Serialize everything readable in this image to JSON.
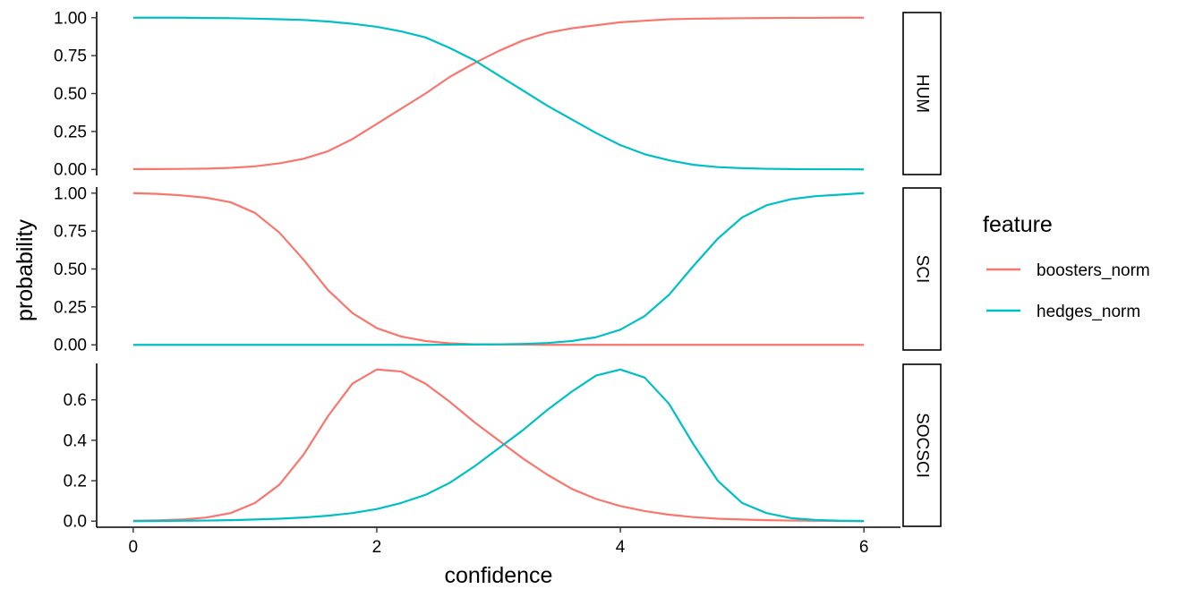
{
  "chart_data": {
    "type": "line",
    "xlabel": "confidence",
    "ylabel": "probability",
    "xlim": [
      -0.3,
      6.3
    ],
    "x_ticks": [
      0,
      2,
      4,
      6
    ],
    "x_tick_labels": [
      "0",
      "2",
      "4",
      "6"
    ],
    "grid": false,
    "legend": {
      "title": "feature",
      "placement": "right",
      "entries": [
        {
          "label": "boosters_norm",
          "color": "#F8766D"
        },
        {
          "label": "hedges_norm",
          "color": "#00BFC4"
        }
      ]
    },
    "x": [
      0,
      0.2,
      0.4,
      0.6,
      0.8,
      1.0,
      1.2,
      1.4,
      1.6,
      1.8,
      2.0,
      2.2,
      2.4,
      2.6,
      2.8,
      3.0,
      3.2,
      3.4,
      3.6,
      3.8,
      4.0,
      4.2,
      4.4,
      4.6,
      4.8,
      5.0,
      5.2,
      5.4,
      5.6,
      5.8,
      6.0
    ],
    "panels": [
      {
        "strip": "HUM",
        "ylim": [
          -0.04,
          1.04
        ],
        "y_ticks": [
          0,
          0.25,
          0.5,
          0.75,
          1.0
        ],
        "y_tick_labels": [
          "0.00",
          "0.25",
          "0.50",
          "0.75",
          "1.00"
        ],
        "series": [
          {
            "name": "boosters_norm",
            "color": "#F8766D",
            "values": [
              0.002,
              0.002,
              0.003,
              0.005,
              0.01,
              0.02,
              0.04,
              0.07,
              0.12,
              0.2,
              0.3,
              0.4,
              0.5,
              0.61,
              0.7,
              0.78,
              0.85,
              0.9,
              0.93,
              0.95,
              0.97,
              0.98,
              0.99,
              0.993,
              0.995,
              0.997,
              0.998,
              0.999,
              0.999,
              1.0,
              1.0
            ]
          },
          {
            "name": "hedges_norm",
            "color": "#00BFC4",
            "values": [
              1.0,
              1.0,
              1.0,
              0.998,
              0.997,
              0.994,
              0.99,
              0.985,
              0.975,
              0.96,
              0.94,
              0.91,
              0.87,
              0.8,
              0.72,
              0.62,
              0.52,
              0.42,
              0.33,
              0.24,
              0.16,
              0.1,
              0.06,
              0.03,
              0.015,
              0.008,
              0.004,
              0.002,
              0.001,
              0.001,
              0.0
            ]
          }
        ]
      },
      {
        "strip": "SCI",
        "ylim": [
          -0.04,
          1.04
        ],
        "y_ticks": [
          0,
          0.25,
          0.5,
          0.75,
          1.0
        ],
        "y_tick_labels": [
          "0.00",
          "0.25",
          "0.50",
          "0.75",
          "1.00"
        ],
        "series": [
          {
            "name": "boosters_norm",
            "color": "#F8766D",
            "values": [
              1.0,
              0.995,
              0.985,
              0.97,
              0.94,
              0.87,
              0.74,
              0.56,
              0.36,
              0.21,
              0.11,
              0.055,
              0.025,
              0.01,
              0.004,
              0.002,
              0.001,
              0.0,
              0.0,
              0.0,
              0.0,
              0.0,
              0.0,
              0.0,
              0.0,
              0.0,
              0.0,
              0.0,
              0.0,
              0.0,
              0.0
            ]
          },
          {
            "name": "hedges_norm",
            "color": "#00BFC4",
            "values": [
              0.0,
              0.0,
              0.0,
              0.0,
              0.0,
              0.0,
              0.0,
              0.0,
              0.0,
              0.0,
              0.0,
              0.0,
              0.0,
              0.001,
              0.002,
              0.003,
              0.006,
              0.012,
              0.025,
              0.05,
              0.1,
              0.19,
              0.33,
              0.52,
              0.7,
              0.84,
              0.92,
              0.96,
              0.98,
              0.99,
              1.0
            ]
          }
        ]
      },
      {
        "strip": "SOCSCI",
        "ylim": [
          -0.03,
          0.78
        ],
        "y_ticks": [
          0,
          0.2,
          0.4,
          0.6
        ],
        "y_tick_labels": [
          "0.0",
          "0.2",
          "0.4",
          "0.6"
        ],
        "series": [
          {
            "name": "boosters_norm",
            "color": "#F8766D",
            "values": [
              0.002,
              0.004,
              0.008,
              0.018,
              0.04,
              0.09,
              0.18,
              0.33,
              0.52,
              0.68,
              0.75,
              0.74,
              0.68,
              0.59,
              0.49,
              0.4,
              0.31,
              0.23,
              0.16,
              0.11,
              0.075,
              0.05,
              0.032,
              0.02,
              0.012,
              0.008,
              0.005,
              0.003,
              0.002,
              0.001,
              0.0
            ]
          },
          {
            "name": "hedges_norm",
            "color": "#00BFC4",
            "values": [
              0.0,
              0.001,
              0.002,
              0.003,
              0.005,
              0.008,
              0.012,
              0.018,
              0.027,
              0.04,
              0.06,
              0.09,
              0.13,
              0.19,
              0.27,
              0.36,
              0.45,
              0.55,
              0.64,
              0.72,
              0.75,
              0.71,
              0.58,
              0.38,
              0.2,
              0.09,
              0.04,
              0.015,
              0.006,
              0.002,
              0.001
            ]
          }
        ]
      }
    ]
  }
}
